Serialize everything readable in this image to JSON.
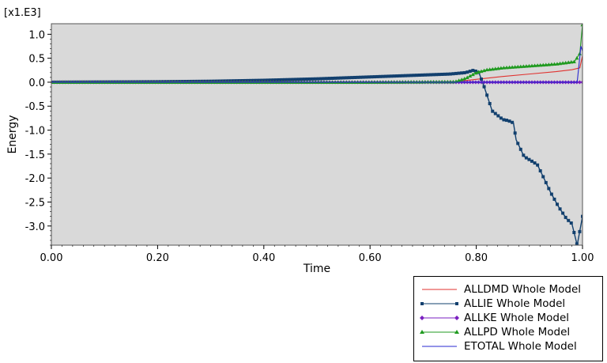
{
  "chart_data": {
    "type": "line",
    "title": "",
    "xlabel": "Time",
    "ylabel": "Energy",
    "y_multiplier_label": "[x1.E3]",
    "xlim": [
      0.0,
      1.0
    ],
    "ylim": [
      -3.4,
      1.22
    ],
    "x_ticks": [
      0.0,
      0.2,
      0.4,
      0.6,
      0.8,
      1.0
    ],
    "x_tick_labels": [
      "0.00",
      "0.20",
      "0.40",
      "0.60",
      "0.80",
      "1.00"
    ],
    "y_ticks": [
      1.0,
      0.5,
      0.0,
      -0.5,
      -1.0,
      -1.5,
      -2.0,
      -2.5,
      -3.0
    ],
    "y_tick_labels": [
      "1.0",
      "0.5",
      "0.0",
      "-0.5",
      "-1.0",
      "-1.5",
      "-2.0",
      "-2.5",
      "-3.0"
    ],
    "plot_background": "#d9d9d9",
    "grid": false,
    "legend_position": "bottom-right, outside plot",
    "series": [
      {
        "name": "ALLDMD Whole Model",
        "color": "#e0322f",
        "marker": "none",
        "x": [
          0.0,
          0.2,
          0.4,
          0.6,
          0.76,
          0.8,
          0.85,
          0.9,
          0.95,
          0.98,
          0.995,
          1.0
        ],
        "y": [
          0.0,
          0.0,
          0.0,
          0.0,
          0.01,
          0.06,
          0.12,
          0.17,
          0.22,
          0.26,
          0.3,
          0.55
        ]
      },
      {
        "name": "ALLIE Whole Model",
        "color": "#12406e",
        "marker": "square",
        "x": [
          0.0,
          0.1,
          0.2,
          0.3,
          0.4,
          0.5,
          0.6,
          0.7,
          0.75,
          0.78,
          0.795,
          0.805,
          0.815,
          0.83,
          0.85,
          0.86,
          0.87,
          0.875,
          0.89,
          0.905,
          0.915,
          0.925,
          0.94,
          0.955,
          0.97,
          0.98,
          0.99,
          0.995,
          1.0
        ],
        "y": [
          0.0,
          0.005,
          0.01,
          0.02,
          0.04,
          0.07,
          0.11,
          0.15,
          0.17,
          0.2,
          0.25,
          0.2,
          -0.1,
          -0.6,
          -0.78,
          -0.8,
          -0.85,
          -1.2,
          -1.55,
          -1.65,
          -1.72,
          -1.95,
          -2.3,
          -2.6,
          -2.85,
          -2.95,
          -3.4,
          -3.1,
          -2.8
        ]
      },
      {
        "name": "ALLKE Whole Model",
        "color": "#7a1fc0",
        "marker": "diamond",
        "x": [
          0.0,
          0.2,
          0.4,
          0.6,
          0.8,
          0.9,
          1.0
        ],
        "y": [
          0.0,
          0.0,
          0.0,
          0.0,
          0.0,
          0.0,
          0.0
        ]
      },
      {
        "name": "ALLPD Whole Model",
        "color": "#1f9a1f",
        "marker": "triangle",
        "x": [
          0.0,
          0.2,
          0.4,
          0.6,
          0.76,
          0.78,
          0.8,
          0.82,
          0.85,
          0.9,
          0.95,
          0.985,
          0.995,
          1.0
        ],
        "y": [
          0.0,
          0.0,
          0.0,
          0.0,
          0.01,
          0.08,
          0.2,
          0.26,
          0.3,
          0.34,
          0.38,
          0.43,
          0.6,
          1.2
        ]
      },
      {
        "name": "ETOTAL Whole Model",
        "color": "#2a2ad0",
        "marker": "none",
        "x": [
          0.0,
          0.2,
          0.4,
          0.6,
          0.8,
          0.99,
          0.997,
          1.0
        ],
        "y": [
          0.0,
          0.0,
          0.0,
          0.0,
          0.0,
          0.0,
          0.75,
          0.65
        ]
      }
    ]
  }
}
